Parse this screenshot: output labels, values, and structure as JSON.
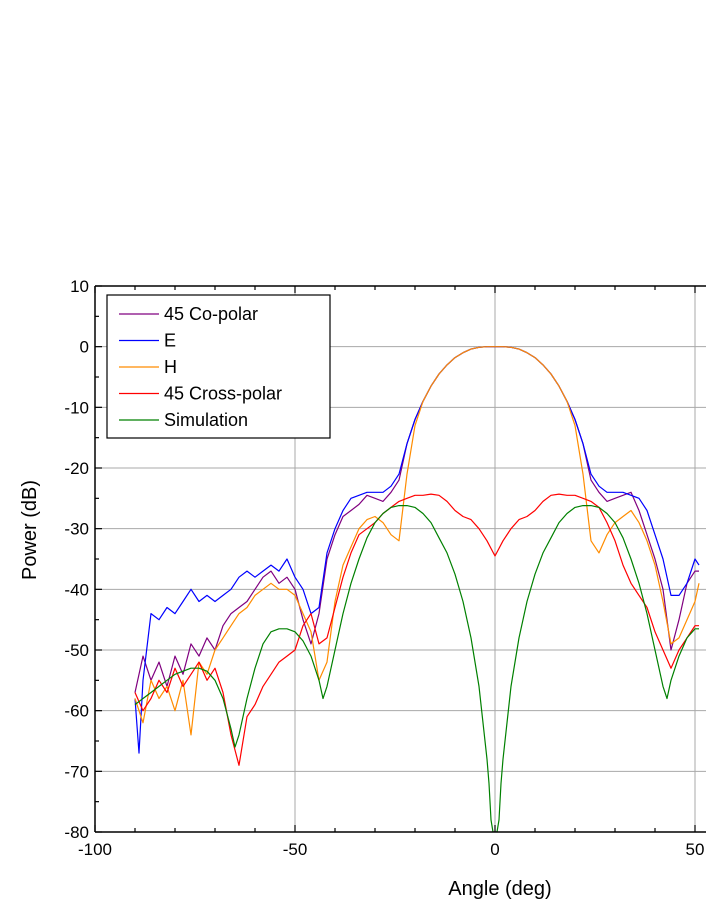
{
  "chart_data": {
    "type": "line",
    "xlabel": "Angle (deg)",
    "ylabel": "Power (dB)",
    "xlim": [
      -100,
      51
    ],
    "ylim": [
      -80,
      10
    ],
    "x_ticks": [
      -100,
      -50,
      0,
      50
    ],
    "x_tick_labels": [
      "-100",
      "-50",
      "0",
      "50"
    ],
    "y_ticks": [
      10,
      0,
      -10,
      -20,
      -30,
      -40,
      -50,
      -60,
      -70,
      -80
    ],
    "y_tick_labels": [
      "10",
      "0",
      "-10",
      "-20",
      "-30",
      "-40",
      "-50",
      "-60",
      "-70",
      "-80"
    ],
    "grid": true,
    "legend_position": "top-left",
    "series": [
      {
        "name": "45 Co-polar",
        "color": "#800080",
        "x": [
          -90,
          -88,
          -86,
          -84,
          -82,
          -80,
          -78,
          -76,
          -74,
          -72,
          -70,
          -68,
          -66,
          -64,
          -62,
          -60,
          -58,
          -56,
          -54,
          -52,
          -50,
          -48,
          -46,
          -44,
          -42,
          -40,
          -38,
          -36,
          -34,
          -32,
          -30,
          -28,
          -26,
          -24,
          -22,
          -20,
          -18,
          -16,
          -14,
          -12,
          -10,
          -8,
          -6,
          -4,
          -2,
          0,
          2,
          4,
          6,
          8,
          10,
          12,
          14,
          16,
          18,
          20,
          22,
          24,
          26,
          28,
          30,
          32,
          34,
          36,
          38,
          40,
          42,
          44,
          46,
          48,
          50,
          51
        ],
        "y": [
          -57,
          -51,
          -55,
          -52,
          -56,
          -51,
          -54,
          -49,
          -51,
          -48,
          -50,
          -46,
          -44,
          -43,
          -42,
          -40,
          -38,
          -37,
          -39,
          -38,
          -40,
          -45,
          -49,
          -44,
          -35,
          -31,
          -28,
          -27,
          -26,
          -24.5,
          -25,
          -25.5,
          -24,
          -22,
          -16,
          -12,
          -9,
          -6.5,
          -4.5,
          -3,
          -1.8,
          -1,
          -0.4,
          -0.1,
          0,
          0,
          0,
          -0.1,
          -0.4,
          -1,
          -1.8,
          -3,
          -4.5,
          -6.5,
          -9,
          -12,
          -16,
          -22,
          -24,
          -25.5,
          -25,
          -24.5,
          -24,
          -27,
          -31,
          -35,
          -40,
          -50,
          -45,
          -39,
          -37,
          -37
        ]
      },
      {
        "name": "E",
        "color": "#0000ff",
        "x": [
          -90,
          -89,
          -88,
          -86,
          -84,
          -82,
          -80,
          -78,
          -76,
          -74,
          -72,
          -70,
          -68,
          -66,
          -64,
          -62,
          -60,
          -58,
          -56,
          -54,
          -52,
          -50,
          -48,
          -46,
          -44,
          -42,
          -40,
          -38,
          -36,
          -34,
          -32,
          -30,
          -28,
          -26,
          -24,
          -22,
          -20,
          -18,
          -16,
          -14,
          -12,
          -10,
          -8,
          -6,
          -4,
          -2,
          0,
          2,
          4,
          6,
          8,
          10,
          12,
          14,
          16,
          18,
          20,
          22,
          24,
          26,
          28,
          30,
          32,
          34,
          36,
          38,
          40,
          42,
          44,
          46,
          48,
          50,
          51
        ],
        "y": [
          -58,
          -67,
          -55,
          -44,
          -45,
          -43,
          -44,
          -42,
          -40,
          -42,
          -41,
          -42,
          -41,
          -40,
          -38,
          -37,
          -38,
          -37,
          -36,
          -37,
          -35,
          -38,
          -40,
          -44,
          -43,
          -34,
          -30,
          -27,
          -25,
          -24.5,
          -24,
          -24,
          -24,
          -23,
          -21,
          -16,
          -12,
          -9,
          -6.5,
          -4.5,
          -3,
          -1.8,
          -1,
          -0.4,
          -0.1,
          0,
          0,
          0,
          -0.1,
          -0.4,
          -1,
          -1.8,
          -3,
          -4.5,
          -6.5,
          -9,
          -12,
          -16,
          -21,
          -23,
          -24,
          -24,
          -24,
          -24.5,
          -25,
          -27,
          -31,
          -35,
          -41,
          -41,
          -39,
          -35,
          -36
        ]
      },
      {
        "name": "H",
        "color": "#ff8c00",
        "x": [
          -90,
          -88,
          -86,
          -84,
          -82,
          -80,
          -78,
          -76,
          -74,
          -72,
          -70,
          -68,
          -66,
          -64,
          -62,
          -60,
          -58,
          -56,
          -54,
          -52,
          -50,
          -48,
          -46,
          -44,
          -42,
          -40,
          -38,
          -36,
          -34,
          -32,
          -30,
          -28,
          -26,
          -24,
          -22,
          -20,
          -18,
          -16,
          -14,
          -12,
          -10,
          -8,
          -6,
          -4,
          -2,
          0,
          2,
          4,
          6,
          8,
          10,
          12,
          14,
          16,
          18,
          20,
          22,
          24,
          26,
          28,
          30,
          32,
          34,
          36,
          38,
          40,
          42,
          44,
          46,
          48,
          50,
          51
        ],
        "y": [
          -58,
          -62,
          -55,
          -58,
          -56,
          -60,
          -55,
          -64,
          -52,
          -54,
          -50,
          -48,
          -46,
          -44,
          -43,
          -41,
          -40,
          -39,
          -40,
          -40,
          -41,
          -44,
          -47,
          -55,
          -52,
          -42,
          -36,
          -33,
          -30,
          -28.5,
          -28,
          -29,
          -31,
          -32,
          -21,
          -13,
          -9,
          -6.5,
          -4.5,
          -3,
          -1.8,
          -1,
          -0.4,
          -0.1,
          0,
          0,
          0,
          -0.1,
          -0.4,
          -1,
          -1.8,
          -3,
          -4.5,
          -6.5,
          -9,
          -13,
          -21,
          -32,
          -34,
          -31,
          -29,
          -28,
          -27,
          -29,
          -32,
          -36,
          -42,
          -49,
          -48,
          -45,
          -42,
          -39
        ]
      },
      {
        "name": "45 Cross-polar",
        "color": "#ff0000",
        "x": [
          -90,
          -88,
          -86,
          -84,
          -82,
          -80,
          -78,
          -76,
          -74,
          -72,
          -70,
          -68,
          -66,
          -64,
          -62,
          -60,
          -58,
          -56,
          -54,
          -52,
          -50,
          -48,
          -46,
          -44,
          -42,
          -40,
          -38,
          -36,
          -34,
          -32,
          -30,
          -28,
          -26,
          -24,
          -22,
          -20,
          -18,
          -16,
          -14,
          -12,
          -10,
          -8,
          -6,
          -4,
          -2,
          0,
          2,
          4,
          6,
          8,
          10,
          12,
          14,
          16,
          18,
          20,
          22,
          24,
          26,
          28,
          30,
          32,
          34,
          36,
          38,
          40,
          42,
          44,
          46,
          48,
          50,
          51
        ],
        "y": [
          -57,
          -60,
          -58,
          -55,
          -57,
          -53,
          -56,
          -54,
          -52,
          -55,
          -53,
          -57,
          -64,
          -69,
          -61,
          -59,
          -56,
          -54,
          -52,
          -51,
          -50,
          -46,
          -44,
          -49,
          -48,
          -43,
          -38,
          -34,
          -31,
          -30,
          -29,
          -27.5,
          -26.5,
          -25.5,
          -25,
          -24.5,
          -24.5,
          -24.3,
          -24.5,
          -25.5,
          -27,
          -28,
          -28.5,
          -30,
          -32,
          -34.5,
          -32,
          -30,
          -28.5,
          -28,
          -27,
          -25.5,
          -24.5,
          -24.3,
          -24.5,
          -24.5,
          -25,
          -25.5,
          -26.5,
          -29,
          -32,
          -36,
          -39,
          -41,
          -43,
          -47,
          -50,
          -53,
          -50,
          -48,
          -46,
          -46
        ]
      },
      {
        "name": "Simulation",
        "color": "#008000",
        "x": [
          -90,
          -88,
          -86,
          -84,
          -82,
          -80,
          -78,
          -76,
          -74,
          -72,
          -70,
          -68,
          -66,
          -65,
          -64,
          -62,
          -60,
          -58,
          -56,
          -54,
          -52,
          -50,
          -48,
          -46,
          -44,
          -43,
          -42,
          -40,
          -38,
          -36,
          -34,
          -32,
          -30,
          -28,
          -26,
          -24,
          -22,
          -20,
          -18,
          -16,
          -14,
          -12,
          -10,
          -8,
          -6,
          -4,
          -2,
          -1.5,
          -1,
          -0.5,
          0,
          0.5,
          1,
          1.5,
          2,
          4,
          6,
          8,
          10,
          12,
          14,
          16,
          18,
          20,
          22,
          24,
          26,
          28,
          30,
          32,
          34,
          36,
          38,
          40,
          42,
          43,
          44,
          46,
          48,
          50,
          51
        ],
        "y": [
          -59,
          -58,
          -57,
          -56,
          -55,
          -54,
          -53.5,
          -53,
          -53,
          -53.5,
          -55,
          -58,
          -63,
          -66,
          -64,
          -58,
          -53,
          -49,
          -47,
          -46.5,
          -46.5,
          -47,
          -48.5,
          -51,
          -55,
          -58,
          -56,
          -50,
          -44,
          -39,
          -35,
          -31.5,
          -29,
          -27.5,
          -26.5,
          -26.2,
          -26.2,
          -26.5,
          -27.5,
          -29,
          -31.5,
          -34,
          -37.5,
          -42,
          -48,
          -56,
          -68,
          -72,
          -78,
          -80,
          -80,
          -80,
          -78,
          -72,
          -68,
          -56,
          -48,
          -42,
          -37.5,
          -34,
          -31.5,
          -29,
          -27.5,
          -26.5,
          -26.2,
          -26.2,
          -26.5,
          -27.5,
          -29,
          -31.5,
          -35,
          -39,
          -44,
          -50,
          -56,
          -58,
          -55,
          -51,
          -48,
          -46.5,
          -46.5
        ]
      }
    ]
  }
}
